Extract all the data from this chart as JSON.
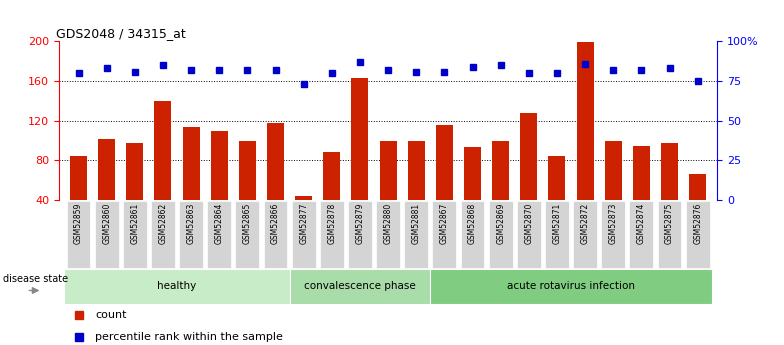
{
  "title": "GDS2048 / 34315_at",
  "samples": [
    "GSM52859",
    "GSM52860",
    "GSM52861",
    "GSM52862",
    "GSM52863",
    "GSM52864",
    "GSM52865",
    "GSM52866",
    "GSM52877",
    "GSM52878",
    "GSM52879",
    "GSM52880",
    "GSM52881",
    "GSM52867",
    "GSM52868",
    "GSM52869",
    "GSM52870",
    "GSM52871",
    "GSM52872",
    "GSM52873",
    "GSM52874",
    "GSM52875",
    "GSM52876"
  ],
  "counts": [
    84,
    102,
    98,
    140,
    114,
    110,
    100,
    118,
    44,
    88,
    163,
    100,
    100,
    116,
    94,
    100,
    128,
    84,
    199,
    100,
    95,
    98,
    66
  ],
  "percentiles": [
    80,
    83,
    81,
    85,
    82,
    82,
    82,
    82,
    73,
    80,
    87,
    82,
    81,
    81,
    84,
    85,
    80,
    80,
    86,
    82,
    82,
    83,
    75
  ],
  "groups": [
    {
      "label": "healthy",
      "start": 0,
      "end": 8
    },
    {
      "label": "convalescence phase",
      "start": 8,
      "end": 13
    },
    {
      "label": "acute rotavirus infection",
      "start": 13,
      "end": 23
    }
  ],
  "group_colors": [
    "#c8ecc8",
    "#a8dca8",
    "#80cc80"
  ],
  "bar_color": "#CC2200",
  "dot_color": "#0000CC",
  "ylim_left": [
    40,
    200
  ],
  "ylim_right": [
    0,
    100
  ],
  "yticks_left": [
    40,
    80,
    120,
    160,
    200
  ],
  "yticks_right": [
    0,
    25,
    50,
    75,
    100
  ],
  "grid_values": [
    80,
    120,
    160
  ],
  "disease_state_label": "disease state",
  "legend_count": "count",
  "legend_pct": "percentile rank within the sample"
}
